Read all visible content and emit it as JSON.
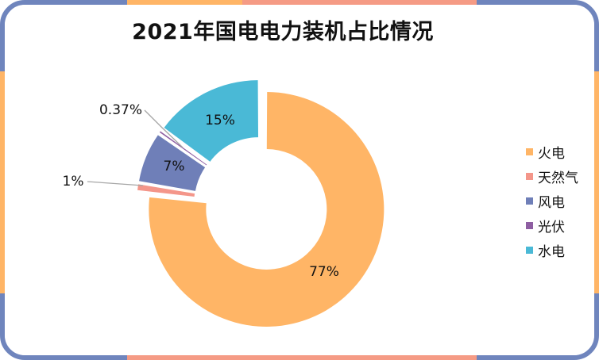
{
  "colors": {
    "frame_blue": "#6f85bd",
    "frame_orange": "#ffb566",
    "frame_salmon": "#f59b85"
  },
  "chart_data": {
    "type": "pie",
    "variant": "donut",
    "title": "2021年国电电力装机占比情况",
    "legend_position": "right",
    "slices": [
      {
        "name": "火电",
        "value": 77,
        "label": "77%",
        "color": "#ffb566"
      },
      {
        "name": "天然气",
        "value": 1,
        "label": "1%",
        "color": "#f4968a"
      },
      {
        "name": "风电",
        "value": 7,
        "label": "7%",
        "color": "#6f7fb8"
      },
      {
        "name": "光伏",
        "value": 0.37,
        "label": "0.37%",
        "color": "#8e5ea2"
      },
      {
        "name": "水电",
        "value": 15,
        "label": "15%",
        "color": "#4ab9d6"
      }
    ]
  }
}
